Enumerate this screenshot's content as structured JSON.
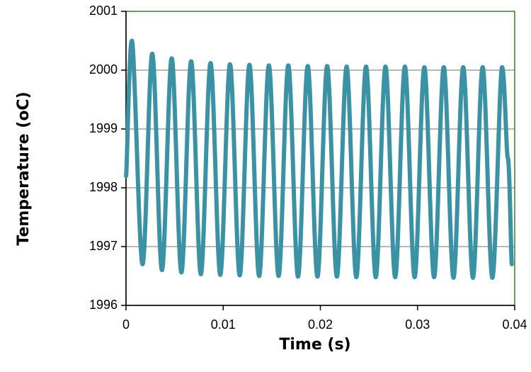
{
  "chart_data": {
    "type": "line",
    "title": "",
    "xlabel": "Time (s)",
    "ylabel": "Temperature (oC)",
    "xlim": [
      0,
      0.04
    ],
    "ylim": [
      1996,
      2001
    ],
    "xticks": [
      0,
      0.01,
      0.02,
      0.03,
      0.04
    ],
    "xtick_labels": [
      "0",
      "0.01",
      "0.02",
      "0.03",
      "0.04"
    ],
    "yticks": [
      1996,
      1997,
      1998,
      1999,
      2000,
      2001
    ],
    "ytick_labels": [
      "1996",
      "1997",
      "1998",
      "1999",
      "2000",
      "2001"
    ],
    "grid": "horizontal",
    "legend": "none",
    "colors": {
      "series": "#3a92a4",
      "frame": "#3a7d2c",
      "grid": "#a0a0a0"
    },
    "series": [
      {
        "x": [
          0,
          0.0006,
          0.0017,
          0.0027,
          0.0037,
          0.0047,
          0.0057,
          0.0067,
          0.0077,
          0.0087,
          0.0097,
          0.0107,
          0.0117,
          0.0127,
          0.0137,
          0.0147,
          0.0157,
          0.0167,
          0.0177,
          0.0187,
          0.0197,
          0.0207,
          0.0217,
          0.0227,
          0.0237,
          0.0247,
          0.0257,
          0.0267,
          0.0277,
          0.0287,
          0.0297,
          0.0307,
          0.0317,
          0.0327,
          0.0337,
          0.0347,
          0.0357,
          0.0367,
          0.0377,
          0.0387,
          0.0393,
          0.0397
        ],
        "y": [
          1998.2,
          2000.5,
          1996.7,
          2000.28,
          1996.6,
          2000.2,
          1996.56,
          2000.15,
          1996.53,
          2000.12,
          1996.52,
          2000.1,
          1996.51,
          2000.09,
          1996.5,
          2000.08,
          1996.5,
          2000.08,
          1996.49,
          2000.07,
          1996.49,
          2000.07,
          1996.49,
          2000.06,
          1996.48,
          2000.06,
          1996.48,
          2000.06,
          1996.48,
          2000.06,
          1996.48,
          2000.05,
          1996.48,
          2000.05,
          1996.47,
          2000.05,
          1996.47,
          2000.05,
          1996.47,
          2000.05,
          1998.5,
          1996.7
        ]
      }
    ]
  }
}
